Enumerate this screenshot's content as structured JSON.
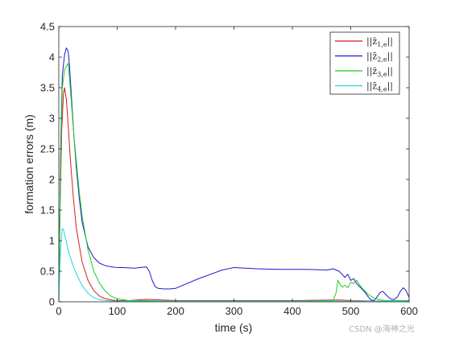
{
  "chart_data": {
    "type": "line",
    "xlabel": "time (s)",
    "ylabel": "formation errors (m)",
    "xlim": [
      0,
      600
    ],
    "ylim": [
      0,
      4.5
    ],
    "xticks": [
      "0",
      "100",
      "200",
      "300",
      "400",
      "500",
      "600"
    ],
    "yticks": [
      "0",
      "0.5",
      "1",
      "1.5",
      "2",
      "2.5",
      "3",
      "3.5",
      "4",
      "4.5"
    ],
    "grid": false,
    "legend_position": "top-right",
    "series": [
      {
        "name": "||z̄1,e||",
        "color": "#d81b1b",
        "x": [
          0,
          2,
          5,
          8,
          10,
          13,
          16,
          20,
          25,
          30,
          40,
          50,
          60,
          70,
          80,
          90,
          100,
          120,
          150,
          200,
          300,
          400,
          480,
          500,
          550,
          600
        ],
        "y": [
          0,
          1.5,
          2.8,
          3.4,
          3.5,
          3.3,
          2.9,
          2.3,
          1.7,
          1.2,
          0.65,
          0.35,
          0.18,
          0.09,
          0.05,
          0.03,
          0.02,
          0.02,
          0.04,
          0.02,
          0.02,
          0.02,
          0.03,
          0.02,
          0.01,
          0.01
        ]
      },
      {
        "name": "||z̄2,e||",
        "color": "#1a1acc",
        "x": [
          0,
          3,
          6,
          10,
          13,
          16,
          18,
          22,
          26,
          30,
          35,
          40,
          50,
          60,
          70,
          80,
          90,
          100,
          110,
          130,
          150,
          155,
          160,
          165,
          170,
          180,
          190,
          200,
          220,
          240,
          260,
          280,
          300,
          320,
          340,
          380,
          420,
          460,
          470,
          475,
          480,
          485,
          490,
          495,
          500,
          505,
          510,
          515,
          520,
          525,
          530,
          535,
          540,
          545,
          550,
          555,
          560,
          565,
          570,
          575,
          580,
          585,
          590,
          595,
          600
        ],
        "y": [
          0,
          2.4,
          3.7,
          4.05,
          4.15,
          4.1,
          3.9,
          3.3,
          2.7,
          2.2,
          1.7,
          1.3,
          0.9,
          0.72,
          0.63,
          0.59,
          0.57,
          0.56,
          0.56,
          0.55,
          0.57,
          0.5,
          0.35,
          0.25,
          0.22,
          0.21,
          0.21,
          0.22,
          0.3,
          0.38,
          0.45,
          0.52,
          0.56,
          0.55,
          0.54,
          0.53,
          0.53,
          0.52,
          0.54,
          0.52,
          0.5,
          0.45,
          0.4,
          0.45,
          0.35,
          0.38,
          0.3,
          0.25,
          0.2,
          0.15,
          0.08,
          0.03,
          0.02,
          0.08,
          0.15,
          0.17,
          0.12,
          0.07,
          0.04,
          0.04,
          0.08,
          0.17,
          0.23,
          0.18,
          0.07
        ]
      },
      {
        "name": "||z̄3,e||",
        "color": "#1fcc1f",
        "x": [
          0,
          3,
          6,
          10,
          13,
          16,
          18,
          22,
          26,
          30,
          35,
          40,
          50,
          60,
          70,
          80,
          90,
          100,
          120,
          150,
          200,
          300,
          400,
          470,
          475,
          478,
          482,
          486,
          490,
          495,
          500,
          505,
          510,
          515,
          520,
          530,
          540,
          550,
          560,
          580,
          600
        ],
        "y": [
          0,
          2.2,
          3.5,
          3.8,
          3.85,
          3.9,
          3.7,
          3.2,
          2.7,
          2.3,
          1.8,
          1.4,
          0.85,
          0.5,
          0.3,
          0.17,
          0.09,
          0.05,
          0.02,
          0.02,
          0.01,
          0.01,
          0.01,
          0.02,
          0.15,
          0.35,
          0.28,
          0.24,
          0.27,
          0.23,
          0.32,
          0.3,
          0.35,
          0.28,
          0.22,
          0.12,
          0.06,
          0.03,
          0.02,
          0.02,
          0.02
        ]
      },
      {
        "name": "||z̄4,e||",
        "color": "#1fd8d8",
        "x": [
          0,
          2,
          4,
          6,
          8,
          10,
          13,
          16,
          20,
          25,
          30,
          35,
          40,
          45,
          50,
          55,
          60,
          65,
          70,
          80,
          90,
          100,
          150,
          200,
          300,
          400,
          500,
          600
        ],
        "y": [
          0,
          0.6,
          1.0,
          1.2,
          1.18,
          1.1,
          0.98,
          0.85,
          0.72,
          0.58,
          0.46,
          0.36,
          0.27,
          0.2,
          0.14,
          0.1,
          0.07,
          0.05,
          0.035,
          0.02,
          0.015,
          0.01,
          0.01,
          0.01,
          0.01,
          0.01,
          0.01,
          0.01
        ]
      }
    ]
  },
  "legend": {
    "entries": [
      {
        "base": "||z̄",
        "sub": "1,e",
        "tail": "||"
      },
      {
        "base": "||z̄",
        "sub": "2,e",
        "tail": "||"
      },
      {
        "base": "||z̄",
        "sub": "3,e",
        "tail": "||"
      },
      {
        "base": "||z̄",
        "sub": "4,e",
        "tail": "||"
      }
    ]
  },
  "watermark": "CSDN @海神之光"
}
